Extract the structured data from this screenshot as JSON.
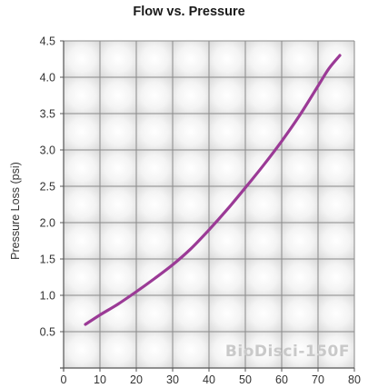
{
  "chart_data": {
    "type": "line",
    "title": "Flow vs. Pressure",
    "xlabel": "",
    "ylabel": "Pressure Loss (psi)",
    "xlim": [
      0,
      80
    ],
    "ylim": [
      0,
      4.5
    ],
    "xticks": [
      0,
      10,
      20,
      30,
      40,
      50,
      60,
      70,
      80
    ],
    "xtick_labels": [
      "0",
      "10",
      "20",
      "30",
      "40",
      "50",
      "60",
      "70",
      "80"
    ],
    "yticks": [
      0.5,
      1.0,
      1.5,
      2.0,
      2.5,
      3.0,
      3.5,
      4.0,
      4.5
    ],
    "ytick_labels": [
      "0.5",
      "1.0",
      "1.5",
      "2.0",
      "2.5",
      "3.0",
      "3.5",
      "4.0",
      "4.5"
    ],
    "grid": true,
    "legend": "none",
    "watermark": "BioDisci-150F",
    "series": [
      {
        "name": "",
        "color": "#9b3a96",
        "x": [
          6,
          10,
          15,
          20,
          25,
          30,
          35,
          40,
          45,
          50,
          55,
          60,
          65,
          70,
          73,
          76
        ],
        "y": [
          0.6,
          0.73,
          0.88,
          1.05,
          1.23,
          1.42,
          1.64,
          1.9,
          2.18,
          2.48,
          2.79,
          3.12,
          3.48,
          3.88,
          4.12,
          4.3
        ]
      }
    ]
  }
}
